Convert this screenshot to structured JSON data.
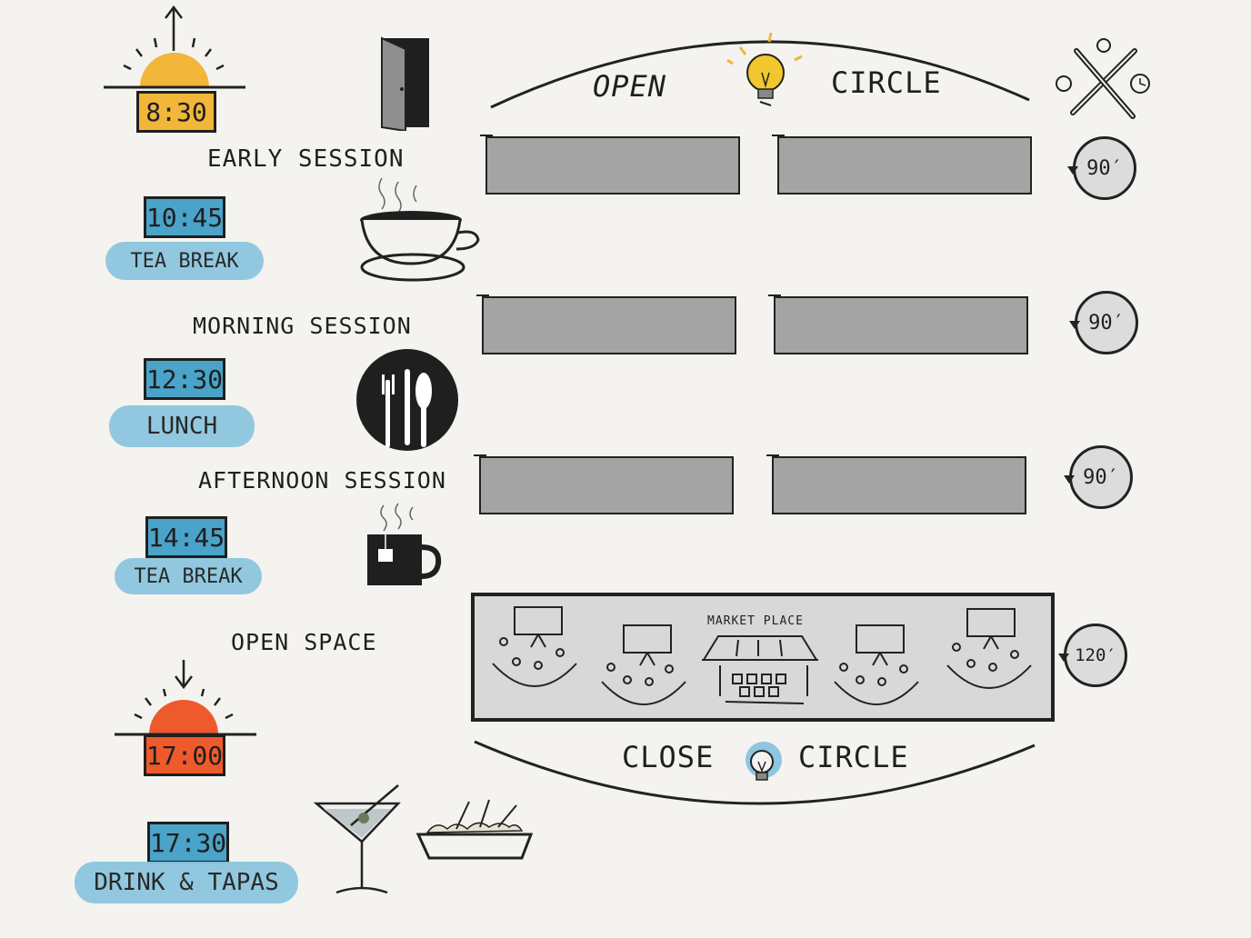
{
  "header": {
    "open_label": "OPEN",
    "circle_label": "CIRCLE",
    "tools_icon": "tools-icon",
    "bulb_icon": "lightbulb-icon"
  },
  "schedule": [
    {
      "time": "8:30",
      "label": "EARLY SESSION",
      "color": "#f2b63a"
    },
    {
      "time": "10:45",
      "label": "TEA BREAK",
      "color": "#4aa3c8"
    },
    {
      "label": "MORNING SESSION"
    },
    {
      "time": "12:30",
      "label": "LUNCH",
      "color": "#4aa3c8"
    },
    {
      "label": "AFTERNOON SESSION"
    },
    {
      "time": "14:45",
      "label": "TEA BREAK",
      "color": "#4aa3c8"
    },
    {
      "label": "OPEN SPACE"
    },
    {
      "time": "17:00",
      "color": "#ef5a2c"
    },
    {
      "time": "17:30",
      "label": "DRINK & TAPAS",
      "color": "#4aa3c8"
    }
  ],
  "timers": [
    "90",
    "90",
    "90",
    "120"
  ],
  "market": {
    "label": "MARKET PLACE"
  },
  "footer": {
    "close_label": "CLOSE",
    "circle_label": "CIRCLE"
  },
  "colors": {
    "slot_gray": "#a4a4a4",
    "brush_blue": "#8cc6df",
    "background": "#f4f3ef"
  }
}
